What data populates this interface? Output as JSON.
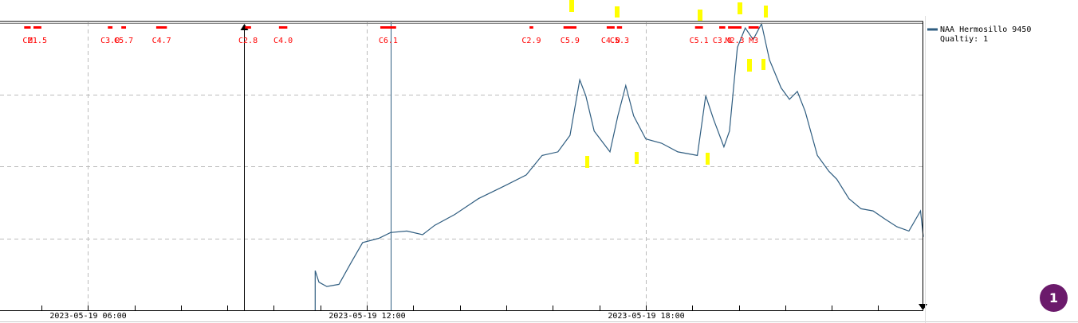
{
  "chart_data": {
    "type": "line",
    "x": [
      10.89,
      10.89,
      10.97,
      11.14,
      11.4,
      11.66,
      11.91,
      12.26,
      12.51,
      12.86,
      13.2,
      13.46,
      13.89,
      14.4,
      14.91,
      15.43,
      15.77,
      16.11,
      16.37,
      16.58,
      16.71,
      16.89,
      17.23,
      17.4,
      17.57,
      17.74,
      18.0,
      18.34,
      18.69,
      19.11,
      19.29,
      19.46,
      19.68,
      19.8,
      19.97,
      20.14,
      20.31,
      20.49,
      20.66,
      20.91,
      21.09,
      21.26,
      21.43,
      21.69,
      21.94,
      22.11,
      22.37,
      22.63,
      22.89,
      23.14,
      23.4,
      23.66,
      23.91,
      23.97
    ],
    "series": [
      {
        "name": "NAA Hermosillo 9450",
        "color": "#2f5d80",
        "values": [
          0,
          0.55,
          0.39,
          0.33,
          0.36,
          0.66,
          0.94,
          1.0,
          1.08,
          1.1,
          1.05,
          1.18,
          1.33,
          1.55,
          1.71,
          1.88,
          2.15,
          2.2,
          2.43,
          3.2,
          2.98,
          2.49,
          2.2,
          2.7,
          3.12,
          2.7,
          2.38,
          2.32,
          2.2,
          2.15,
          2.98,
          2.65,
          2.27,
          2.49,
          3.65,
          3.92,
          3.76,
          3.98,
          3.48,
          3.09,
          2.93,
          3.04,
          2.76,
          2.15,
          1.93,
          1.82,
          1.55,
          1.41,
          1.38,
          1.27,
          1.16,
          1.1,
          1.38,
          1.02
        ]
      }
    ],
    "quality": "Qualtiy: 1",
    "xlim": [
      4.11,
      23.97
    ],
    "xticks": [
      {
        "value": 6,
        "label": "2023-05-19 06:00"
      },
      {
        "value": 12,
        "label": "2023-05-19 12:00"
      },
      {
        "value": 18,
        "label": "2023-05-19 18:00"
      }
    ],
    "xminor": [
      5,
      6,
      7,
      8,
      9,
      10,
      11,
      12,
      13,
      14,
      15,
      16,
      17,
      18,
      19,
      20,
      21,
      22,
      23
    ],
    "ylim": [
      0,
      4
    ],
    "yticks": [
      1,
      2,
      3
    ],
    "grid": true,
    "markers": [
      9.36,
      12.51
    ],
    "flare_color": "#ff0000",
    "flares": [
      {
        "label": "C2",
        "start": 4.63,
        "end": 4.77
      },
      {
        "label": "M1.5",
        "start": 4.83,
        "end": 5.0
      },
      {
        "label": "C3.0",
        "start": 6.43,
        "end": 6.53
      },
      {
        "label": "C5.7",
        "start": 6.72,
        "end": 6.82
      },
      {
        "label": "C4.7",
        "start": 7.47,
        "end": 7.7
      },
      {
        "label": "C2.8",
        "start": 9.38,
        "end": 9.51
      },
      {
        "label": "C4.0",
        "start": 10.11,
        "end": 10.29
      },
      {
        "label": "C6.1",
        "start": 12.29,
        "end": 12.63
      },
      {
        "label": "C2.9",
        "start": 15.5,
        "end": 15.58
      },
      {
        "label": "C5.9",
        "start": 16.23,
        "end": 16.51
      },
      {
        "label": "C4.0",
        "start": 17.16,
        "end": 17.33
      },
      {
        "label": "C5.3",
        "start": 17.38,
        "end": 17.49
      },
      {
        "label": "C5.1",
        "start": 19.06,
        "end": 19.23
      },
      {
        "label": "C3.0",
        "start": 19.58,
        "end": 19.71
      },
      {
        "label": "M2.3",
        "start": 19.77,
        "end": 20.06
      },
      {
        "label": "M3",
        "start": 20.21,
        "end": 20.43
      }
    ]
  },
  "badge": "1"
}
